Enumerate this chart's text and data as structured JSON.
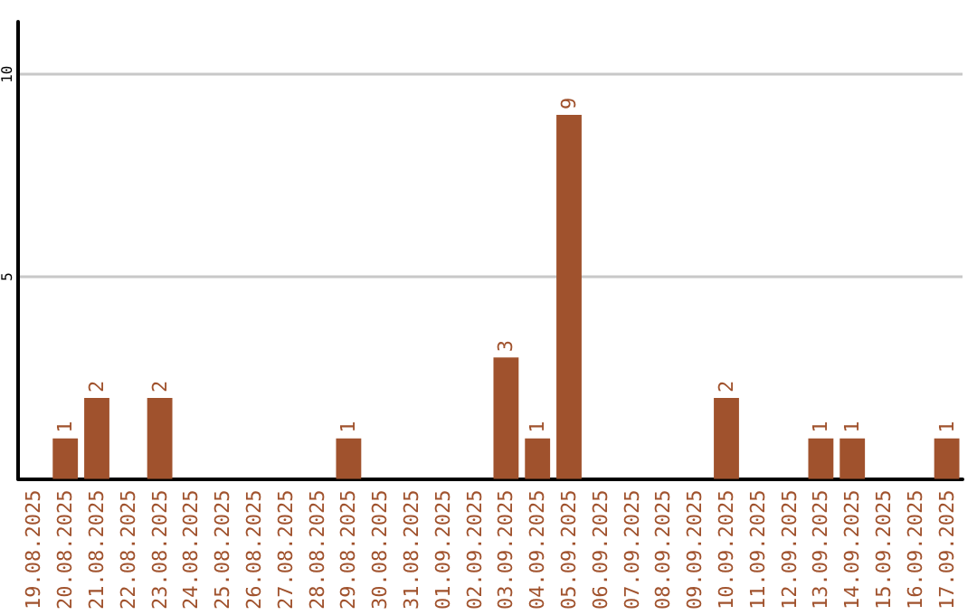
{
  "chart_data": {
    "type": "bar",
    "categories": [
      "19.08.2025",
      "20.08.2025",
      "21.08.2025",
      "22.08.2025",
      "23.08.2025",
      "24.08.2025",
      "25.08.2025",
      "26.08.2025",
      "27.08.2025",
      "28.08.2025",
      "29.08.2025",
      "30.08.2025",
      "31.08.2025",
      "01.09.2025",
      "02.09.2025",
      "03.09.2025",
      "04.09.2025",
      "05.09.2025",
      "06.09.2025",
      "07.09.2025",
      "08.09.2025",
      "09.09.2025",
      "10.09.2025",
      "11.09.2025",
      "12.09.2025",
      "13.09.2025",
      "14.09.2025",
      "15.09.2025",
      "16.09.2025",
      "17.09.2025"
    ],
    "values": [
      0,
      1,
      2,
      0,
      2,
      0,
      0,
      0,
      0,
      0,
      1,
      0,
      0,
      0,
      0,
      3,
      1,
      9,
      0,
      0,
      0,
      0,
      2,
      0,
      0,
      1,
      1,
      0,
      0,
      1
    ],
    "value_labels": [
      null,
      "1",
      "2",
      null,
      "2",
      null,
      null,
      null,
      null,
      null,
      "1",
      null,
      null,
      null,
      null,
      "3",
      "1",
      "9",
      null,
      null,
      null,
      null,
      "2",
      null,
      null,
      "1",
      "1",
      null,
      null,
      "1"
    ],
    "color": "#a0522d",
    "ylim": [
      0,
      11.3
    ],
    "yticks": [
      {
        "value": 0,
        "label": null
      },
      5,
      10
    ],
    "grid": "y"
  }
}
